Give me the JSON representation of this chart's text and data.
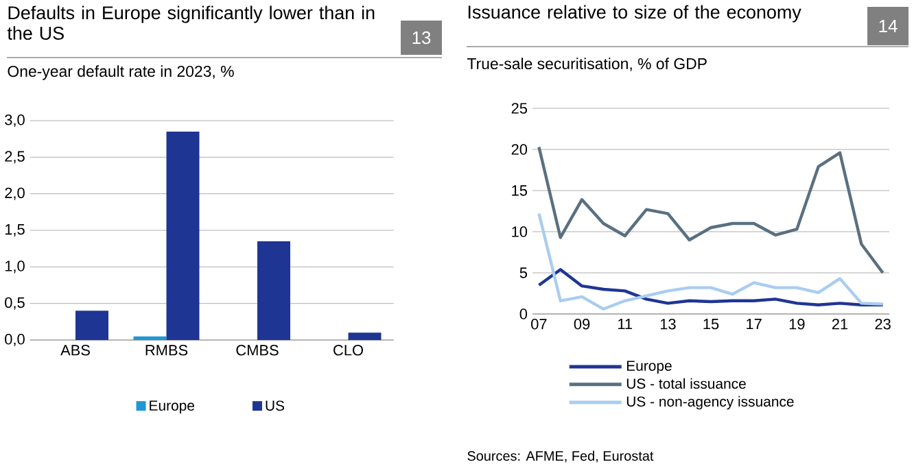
{
  "chart_data": [
    {
      "type": "bar",
      "title": "Defaults in Europe significantly lower than in the US",
      "subtitle": "One-year default rate in 2023, %",
      "categories": [
        "ABS",
        "RMBS",
        "CMBS",
        "CLO"
      ],
      "series": [
        {
          "name": "Europe",
          "color": "#1e98d3",
          "values": [
            0,
            0.05,
            0,
            0
          ]
        },
        {
          "name": "US",
          "color": "#1f3593",
          "values": [
            0.4,
            2.85,
            1.35,
            0.1
          ]
        }
      ],
      "ylim": [
        0,
        3
      ],
      "yticks": [
        {
          "value": 0,
          "label": "0,0"
        },
        {
          "value": 0.5,
          "label": "0,5"
        },
        {
          "value": 1,
          "label": "1,0"
        },
        {
          "value": 1.5,
          "label": "1,5"
        },
        {
          "value": 2,
          "label": "2,0"
        },
        {
          "value": 2.5,
          "label": "2,5"
        },
        {
          "value": 3,
          "label": "3,0"
        }
      ],
      "grid": "y",
      "legend": "bottom",
      "annotations": [
        "13"
      ]
    },
    {
      "type": "line",
      "title": "Issuance relative to size of the economy",
      "subtitle": "True-sale securitisation, % of GDP",
      "x": [
        2007,
        2008,
        2009,
        2010,
        2011,
        2012,
        2013,
        2014,
        2015,
        2016,
        2017,
        2018,
        2019,
        2020,
        2021,
        2022,
        2023
      ],
      "series": [
        {
          "name": "Europe",
          "color": "#1f3595",
          "values": [
            3.5,
            5.4,
            3.4,
            3.0,
            2.8,
            1.8,
            1.3,
            1.6,
            1.5,
            1.6,
            1.6,
            1.8,
            1.3,
            1.1,
            1.3,
            1.1,
            1.1
          ]
        },
        {
          "name": "US - total issuance",
          "color": "#5a7080",
          "values": [
            20.3,
            9.3,
            13.9,
            11.0,
            9.5,
            12.7,
            12.2,
            9.0,
            10.5,
            11.0,
            11.0,
            9.6,
            10.3,
            17.9,
            19.6,
            8.5,
            5.0
          ]
        },
        {
          "name": "US - non-agency issuance",
          "color": "#a9cdf0",
          "values": [
            12.2,
            1.6,
            2.1,
            0.6,
            1.6,
            2.2,
            2.8,
            3.2,
            3.2,
            2.4,
            3.8,
            3.2,
            3.2,
            2.6,
            4.3,
            1.3,
            1.2
          ]
        }
      ],
      "xlim": [
        2006.7,
        2023.3
      ],
      "xticks": [
        {
          "value": 2007,
          "label": "07"
        },
        {
          "value": 2009,
          "label": "09"
        },
        {
          "value": 2011,
          "label": "11"
        },
        {
          "value": 2013,
          "label": "13"
        },
        {
          "value": 2015,
          "label": "15"
        },
        {
          "value": 2017,
          "label": "17"
        },
        {
          "value": 2019,
          "label": "19"
        },
        {
          "value": 2021,
          "label": "21"
        },
        {
          "value": 2023,
          "label": "23"
        }
      ],
      "ylim": [
        0,
        25
      ],
      "yticks": [
        0,
        5,
        10,
        15,
        20,
        25
      ],
      "grid": "y",
      "legend": "bottom",
      "annotations": [
        "14",
        "Sources: AFME, Fed, Eurostat"
      ]
    }
  ]
}
